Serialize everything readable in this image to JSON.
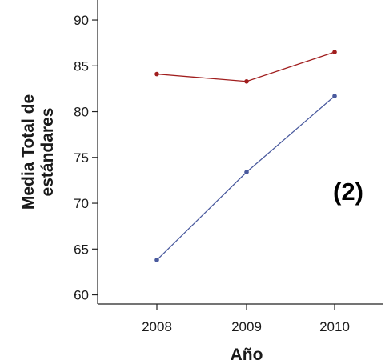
{
  "chart_data": {
    "type": "line",
    "xlabel": "Año",
    "ylabel_lines": [
      "Media Total de",
      "estándares"
    ],
    "annotation": "(2)",
    "categories": [
      "2008",
      "2009",
      "2010"
    ],
    "y_ticks": [
      "60",
      "65",
      "70",
      "75",
      "80",
      "85",
      "90"
    ],
    "ylim": [
      59,
      90
    ],
    "grid": false,
    "legend": "none",
    "series": [
      {
        "color": "#a01d1d",
        "values": [
          84.1,
          83.3,
          86.5
        ]
      },
      {
        "color": "#4a5a9e",
        "values": [
          63.8,
          73.4,
          81.7
        ]
      }
    ]
  }
}
